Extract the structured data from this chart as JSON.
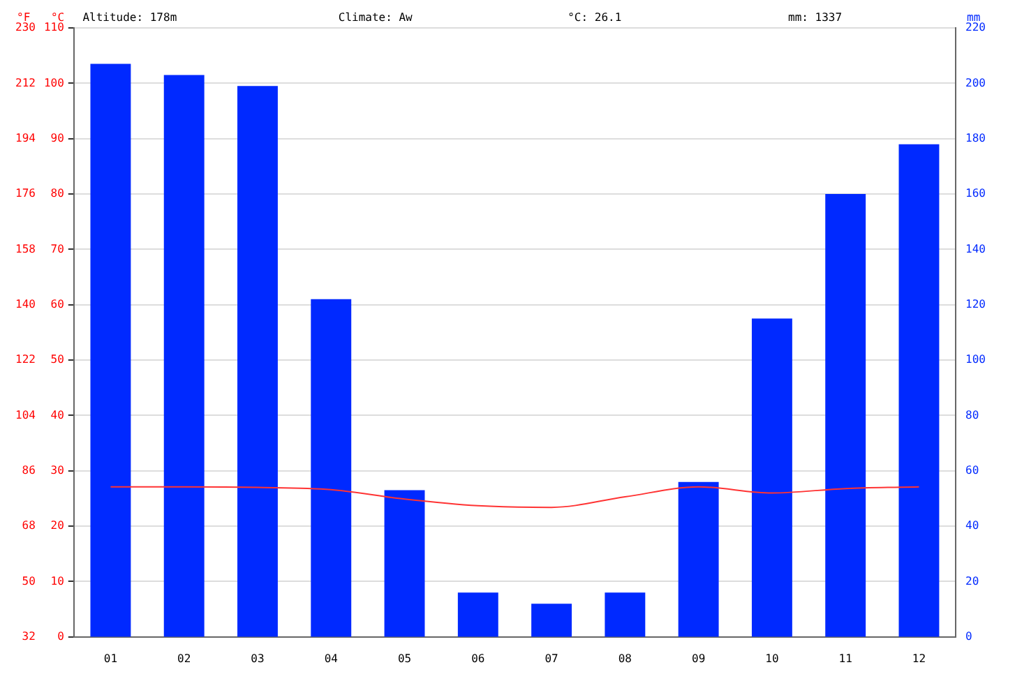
{
  "chart_data": {
    "type": "bar",
    "categories": [
      "01",
      "02",
      "03",
      "04",
      "05",
      "06",
      "07",
      "08",
      "09",
      "10",
      "11",
      "12"
    ],
    "series": [
      {
        "axis": "y2",
        "color": "#0029ff",
        "values": [
          207,
          203,
          199,
          122,
          53,
          16,
          12,
          16,
          56,
          115,
          160,
          178
        ]
      },
      {
        "type": "line",
        "axis": "y",
        "color": "#ff3333",
        "values": [
          27.1,
          27.1,
          27.0,
          26.6,
          24.9,
          23.7,
          23.4,
          25.3,
          27.1,
          26.0,
          26.8,
          27.1
        ]
      }
    ],
    "ylabel": "°C",
    "y2label": "mm",
    "y3label": "°F",
    "ylim": [
      0,
      110
    ],
    "yticks": [
      0,
      10,
      20,
      30,
      40,
      50,
      60,
      70,
      80,
      90,
      100,
      110
    ],
    "y2lim": [
      0,
      220
    ],
    "y2ticks": [
      0,
      20,
      40,
      60,
      80,
      100,
      120,
      140,
      160,
      180,
      200,
      220
    ],
    "y3lim": [
      32,
      230
    ],
    "y3ticks": [
      32,
      50,
      68,
      86,
      104,
      122,
      140,
      158,
      176,
      194,
      212,
      230
    ],
    "annotations": [
      "Altitude: 178m",
      "Climate: Aw",
      "°C: 26.1",
      "mm: 1337"
    ],
    "grid": "y",
    "marker": "none",
    "legend": false
  }
}
